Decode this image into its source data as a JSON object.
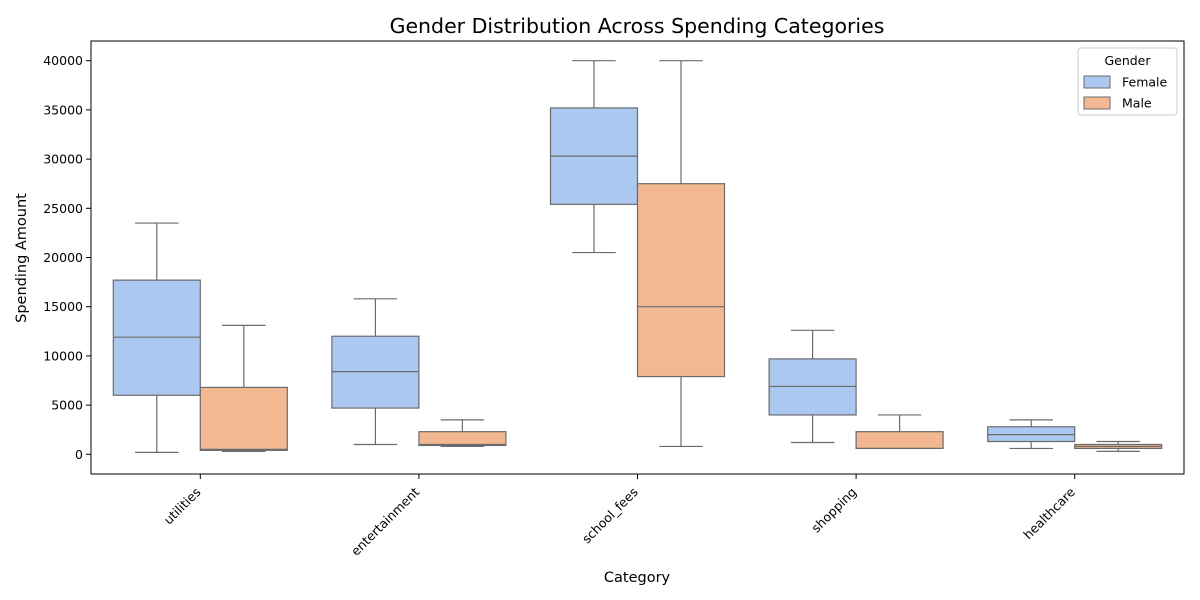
{
  "chart_data": {
    "type": "boxplot",
    "title": "Gender Distribution Across Spending Categories",
    "xlabel": "Category",
    "ylabel": "Spending Amount",
    "ylim": [
      -2000,
      42000
    ],
    "yticks": [
      0,
      5000,
      10000,
      15000,
      20000,
      25000,
      30000,
      35000,
      40000
    ],
    "categories": [
      "utilities",
      "entertainment",
      "school_fees",
      "shopping",
      "healthcare"
    ],
    "legend": {
      "title": "Gender",
      "position": "top-right"
    },
    "series": [
      {
        "name": "Female",
        "color": "#abc9f0",
        "boxes": [
          {
            "whisker_low": 200,
            "q1": 6000,
            "median": 11900,
            "q3": 17700,
            "whisker_high": 23500
          },
          {
            "whisker_low": 1000,
            "q1": 4700,
            "median": 8400,
            "q3": 12000,
            "whisker_high": 15800
          },
          {
            "whisker_low": 20500,
            "q1": 25400,
            "median": 30300,
            "q3": 35200,
            "whisker_high": 40000
          },
          {
            "whisker_low": 1200,
            "q1": 4000,
            "median": 6900,
            "q3": 9700,
            "whisker_high": 12600
          },
          {
            "whisker_low": 600,
            "q1": 1300,
            "median": 2000,
            "q3": 2800,
            "whisker_high": 3500
          }
        ]
      },
      {
        "name": "Male",
        "color": "#f2b891",
        "boxes": [
          {
            "whisker_low": 300,
            "q1": 400,
            "median": 500,
            "q3": 6800,
            "whisker_high": 13100
          },
          {
            "whisker_low": 800,
            "q1": 900,
            "median": 1000,
            "q3": 2300,
            "whisker_high": 3500
          },
          {
            "whisker_low": 800,
            "q1": 7900,
            "median": 15000,
            "q3": 27500,
            "whisker_high": 40000
          },
          {
            "whisker_low": 600,
            "q1": 600,
            "median": 600,
            "q3": 2300,
            "whisker_high": 4000
          },
          {
            "whisker_low": 300,
            "q1": 600,
            "median": 800,
            "q3": 1000,
            "whisker_high": 1300
          }
        ]
      }
    ]
  }
}
